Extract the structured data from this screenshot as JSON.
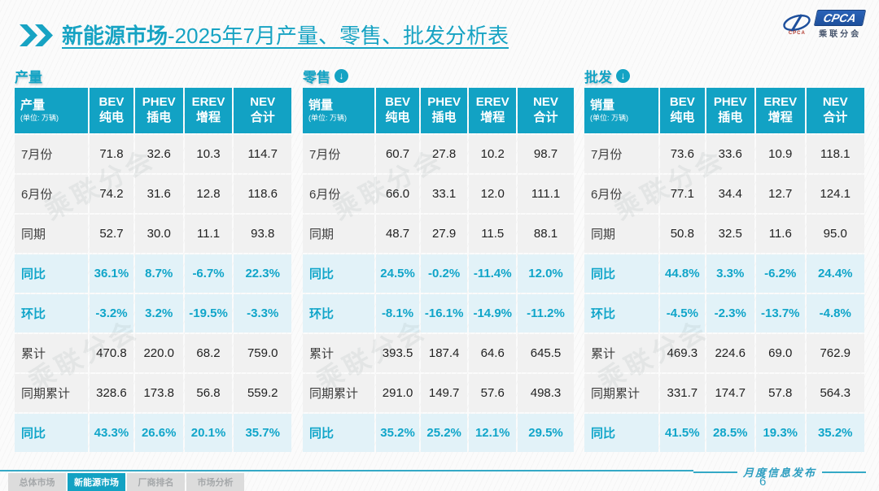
{
  "header": {
    "title_bold": "新能源市场",
    "title_rest": "-2025年7月产量、零售、批发分析表",
    "logo": {
      "box_text": "CPCA",
      "org_text": "乘联分会",
      "mini_text": "CPCA"
    }
  },
  "watermark": "乘联分会",
  "colors": {
    "accent_teal": "#12a2c4",
    "highlight_bg": "#e2f2f8",
    "logo_blue": "#1d4f9c"
  },
  "tables": [
    {
      "label": "产量",
      "first_header": "产量",
      "unit": "(单位: 万辆)",
      "columns": [
        {
          "top": "BEV",
          "bottom": "纯电"
        },
        {
          "top": "PHEV",
          "bottom": "插电"
        },
        {
          "top": "EREV",
          "bottom": "增程"
        },
        {
          "top": "NEV",
          "bottom": "合计"
        }
      ],
      "rows": [
        {
          "label": "7月份",
          "values": [
            "71.8",
            "32.6",
            "10.3",
            "114.7"
          ],
          "highlight": false
        },
        {
          "label": "6月份",
          "values": [
            "74.2",
            "31.6",
            "12.8",
            "118.6"
          ],
          "highlight": false
        },
        {
          "label": "同期",
          "values": [
            "52.7",
            "30.0",
            "11.1",
            "93.8"
          ],
          "highlight": false
        },
        {
          "label": "同比",
          "values": [
            "36.1%",
            "8.7%",
            "-6.7%",
            "22.3%"
          ],
          "highlight": true
        },
        {
          "label": "环比",
          "values": [
            "-3.2%",
            "3.2%",
            "-19.5%",
            "-3.3%"
          ],
          "highlight": true
        },
        {
          "label": "累计",
          "values": [
            "470.8",
            "220.0",
            "68.2",
            "759.0"
          ],
          "highlight": false
        },
        {
          "label": "同期累计",
          "values": [
            "328.6",
            "173.8",
            "56.8",
            "559.2"
          ],
          "highlight": false
        },
        {
          "label": "同比",
          "values": [
            "43.3%",
            "26.6%",
            "20.1%",
            "35.7%"
          ],
          "highlight": true
        }
      ]
    },
    {
      "label": "零售",
      "first_header": "销量",
      "unit": "(单位: 万辆)",
      "columns": [
        {
          "top": "BEV",
          "bottom": "纯电"
        },
        {
          "top": "PHEV",
          "bottom": "插电"
        },
        {
          "top": "EREV",
          "bottom": "增程"
        },
        {
          "top": "NEV",
          "bottom": "合计"
        }
      ],
      "rows": [
        {
          "label": "7月份",
          "values": [
            "60.7",
            "27.8",
            "10.2",
            "98.7"
          ],
          "highlight": false
        },
        {
          "label": "6月份",
          "values": [
            "66.0",
            "33.1",
            "12.0",
            "111.1"
          ],
          "highlight": false
        },
        {
          "label": "同期",
          "values": [
            "48.7",
            "27.9",
            "11.5",
            "88.1"
          ],
          "highlight": false
        },
        {
          "label": "同比",
          "values": [
            "24.5%",
            "-0.2%",
            "-11.4%",
            "12.0%"
          ],
          "highlight": true
        },
        {
          "label": "环比",
          "values": [
            "-8.1%",
            "-16.1%",
            "-14.9%",
            "-11.2%"
          ],
          "highlight": true
        },
        {
          "label": "累计",
          "values": [
            "393.5",
            "187.4",
            "64.6",
            "645.5"
          ],
          "highlight": false
        },
        {
          "label": "同期累计",
          "values": [
            "291.0",
            "149.7",
            "57.6",
            "498.3"
          ],
          "highlight": false
        },
        {
          "label": "同比",
          "values": [
            "35.2%",
            "25.2%",
            "12.1%",
            "29.5%"
          ],
          "highlight": true
        }
      ]
    },
    {
      "label": "批发",
      "first_header": "销量",
      "unit": "(单位: 万辆)",
      "columns": [
        {
          "top": "BEV",
          "bottom": "纯电"
        },
        {
          "top": "PHEV",
          "bottom": "插电"
        },
        {
          "top": "EREV",
          "bottom": "增程"
        },
        {
          "top": "NEV",
          "bottom": "合计"
        }
      ],
      "rows": [
        {
          "label": "7月份",
          "values": [
            "73.6",
            "33.6",
            "10.9",
            "118.1"
          ],
          "highlight": false
        },
        {
          "label": "6月份",
          "values": [
            "77.1",
            "34.4",
            "12.7",
            "124.1"
          ],
          "highlight": false
        },
        {
          "label": "同期",
          "values": [
            "50.8",
            "32.5",
            "11.6",
            "95.0"
          ],
          "highlight": false
        },
        {
          "label": "同比",
          "values": [
            "44.8%",
            "3.3%",
            "-6.2%",
            "24.4%"
          ],
          "highlight": true
        },
        {
          "label": "环比",
          "values": [
            "-4.5%",
            "-2.3%",
            "-13.7%",
            "-4.8%"
          ],
          "highlight": true
        },
        {
          "label": "累计",
          "values": [
            "469.3",
            "224.6",
            "69.0",
            "762.9"
          ],
          "highlight": false
        },
        {
          "label": "同期累计",
          "values": [
            "331.7",
            "174.7",
            "57.8",
            "564.3"
          ],
          "highlight": false
        },
        {
          "label": "同比",
          "values": [
            "41.5%",
            "28.5%",
            "19.3%",
            "35.2%"
          ],
          "highlight": true
        }
      ]
    }
  ],
  "footer": {
    "caption": "月度信息发布",
    "page_number": "6",
    "tabs": [
      {
        "name": "overall-market",
        "label": "总体市场",
        "active": false
      },
      {
        "name": "nev-market",
        "label": "新能源市场",
        "active": true
      },
      {
        "name": "manufacturer-ranking",
        "label": "厂商排名",
        "active": false
      },
      {
        "name": "market-analysis",
        "label": "市场分析",
        "active": false
      }
    ]
  }
}
